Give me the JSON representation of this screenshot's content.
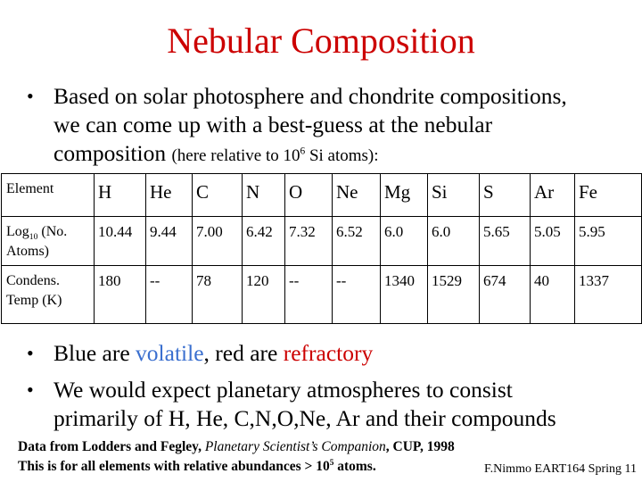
{
  "slide": {
    "title": "Nebular Composition",
    "bullet1": {
      "line1": "Based on solar photosphere and chondrite compositions,",
      "line2": "we can come up with a best-guess at the nebular",
      "line3_a": "composition ",
      "line3_b": "(here relative to 10",
      "line3_sup": "6",
      "line3_c": " Si atoms):"
    },
    "table": {
      "row1_label": "Element",
      "elements": [
        "H",
        "He",
        "C",
        "N",
        "O",
        "Ne",
        "Mg",
        "Si",
        "S",
        "Ar",
        "Fe"
      ],
      "row2_label_a": "Log",
      "row2_label_sub": "10",
      "row2_label_b": " (No. Atoms)",
      "log_values": [
        "10.44",
        "9.44",
        "7.00",
        "6.42",
        "7.32",
        "6.52",
        "6.0",
        "6.0",
        "5.65",
        "5.05",
        "5.95"
      ],
      "row3_label": "Condens. Temp (K)",
      "temp_values": [
        "180",
        "--",
        "78",
        "120",
        "--",
        "--",
        "1340",
        "1529",
        "674",
        "40",
        "1337"
      ]
    },
    "bullet2": {
      "a": "Blue are ",
      "volatile": "volatile",
      "b": ", red are ",
      "refractory": "refractory"
    },
    "bullet3": {
      "line1": "We would expect planetary atmospheres to consist",
      "line2": "primarily of H, He, C,N,O,Ne, Ar and their compounds"
    },
    "footnote": {
      "line1_a": "Data from Lodders and Fegley, ",
      "line1_italic": "Planetary Scientist’s Companion",
      "line1_b": ", CUP, 1998",
      "line2_a": "This is for all elements with relative abundances > 10",
      "line2_sup": "5",
      "line2_b": " atoms."
    },
    "signature": "F.Nimmo EART164 Spring 11",
    "colors": {
      "title": "#cc0000",
      "volatile": "#3a6fcf",
      "refractory": "#cc0000"
    }
  }
}
